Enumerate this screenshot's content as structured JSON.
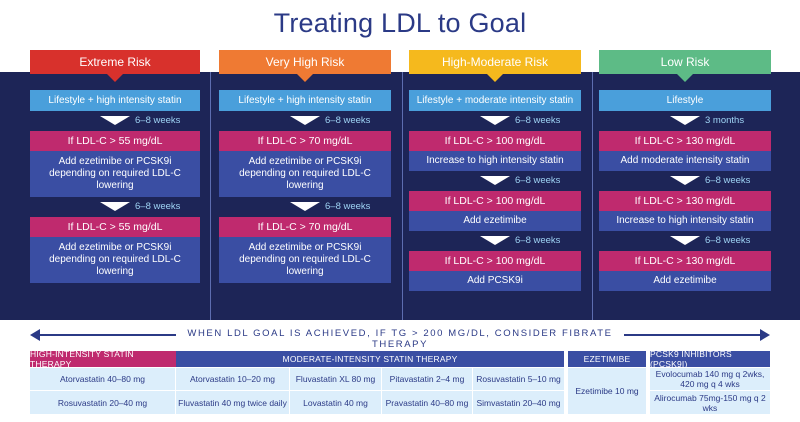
{
  "title": "Treating LDL to Goal",
  "colors": {
    "extreme": "#d8312c",
    "very_high": "#ef7a33",
    "high_moderate": "#f5b91d",
    "low": "#5dbb86",
    "band": "#1d2557",
    "lifestyle_box": "#4a9fdb",
    "threshold_box": "#bf2a6e",
    "action_box": "#3a4ea3",
    "title_text": "#2b3a86",
    "table_cell": "#dceefb"
  },
  "columns": [
    {
      "header": "Extreme Risk",
      "lifestyle": "Lifestyle + high intensity statin",
      "steps": [
        {
          "interval": "6–8 weeks",
          "threshold": "If LDL-C > 55 mg/dL",
          "action": "Add ezetimibe or PCSK9i depending on required LDL-C lowering"
        },
        {
          "interval": "6–8 weeks",
          "threshold": "If LDL-C > 55 mg/dL",
          "action": "Add ezetimibe or PCSK9i depending on required LDL-C lowering"
        }
      ]
    },
    {
      "header": "Very High Risk",
      "lifestyle": "Lifestyle + high intensity statin",
      "steps": [
        {
          "interval": "6–8 weeks",
          "threshold": "If LDL-C > 70 mg/dL",
          "action": "Add ezetimibe or PCSK9i depending on required LDL-C lowering"
        },
        {
          "interval": "6–8 weeks",
          "threshold": "If LDL-C > 70 mg/dL",
          "action": "Add ezetimibe or PCSK9i depending on required LDL-C lowering"
        }
      ]
    },
    {
      "header": "High-Moderate Risk",
      "lifestyle": "Lifestyle + moderate intensity statin",
      "steps": [
        {
          "interval": "6–8 weeks",
          "threshold": "If LDL-C > 100 mg/dL",
          "action": "Increase to high intensity statin"
        },
        {
          "interval": "6–8 weeks",
          "threshold": "If LDL-C > 100 mg/dL",
          "action": "Add ezetimibe"
        },
        {
          "interval": "6–8 weeks",
          "threshold": "If LDL-C > 100 mg/dL",
          "action": "Add PCSK9i"
        }
      ]
    },
    {
      "header": "Low Risk",
      "lifestyle": "Lifestyle",
      "steps": [
        {
          "interval": "3 months",
          "threshold": "If LDL-C > 130 mg/dL",
          "action": "Add moderate intensity statin"
        },
        {
          "interval": "6–8 weeks",
          "threshold": "If LDL-C > 130 mg/dL",
          "action": "Increase to high intensity statin"
        },
        {
          "interval": "6–8 weeks",
          "threshold": "If LDL-C > 130 mg/dL",
          "action": "Add ezetimibe"
        }
      ]
    }
  ],
  "fibrate_note": "WHEN LDL GOAL IS ACHIEVED, IF TG > 200 MG/DL, CONSIDER FIBRATE THERAPY",
  "table": {
    "high_intensity": {
      "header": "HIGH-INTENSITY STATIN THERAPY",
      "header_color": "#bf2a6e",
      "rows": [
        "Atorvastatin 40–80 mg",
        "Rosuvastatin 20–40 mg"
      ]
    },
    "moderate_intensity": {
      "header": "MODERATE-INTENSITY STATIN THERAPY",
      "header_color": "#3a4ea3",
      "rows": [
        [
          "Atorvastatin 10–20 mg",
          "Fluvastatin XL 80 mg",
          "Pitavastatin 2–4 mg",
          "Rosuvastatin 5–10 mg"
        ],
        [
          "Fluvastatin 40 mg twice daily",
          "Lovastatin 40 mg",
          "Pravastatin 40–80 mg",
          "Simvastatin 20–40 mg"
        ]
      ]
    },
    "ezetimibe": {
      "header": "EZETIMIBE",
      "header_color": "#3a4ea3",
      "value": "Ezetimibe 10 mg"
    },
    "pcsk9": {
      "header": "PCSK9 INHIBITORS (PCSK9I)",
      "header_color": "#3a4ea3",
      "rows": [
        "Evolocumab 140 mg q 2wks, 420 mg q 4 wks",
        "Alirocumab 75mg-150 mg q 2 wks"
      ]
    }
  }
}
